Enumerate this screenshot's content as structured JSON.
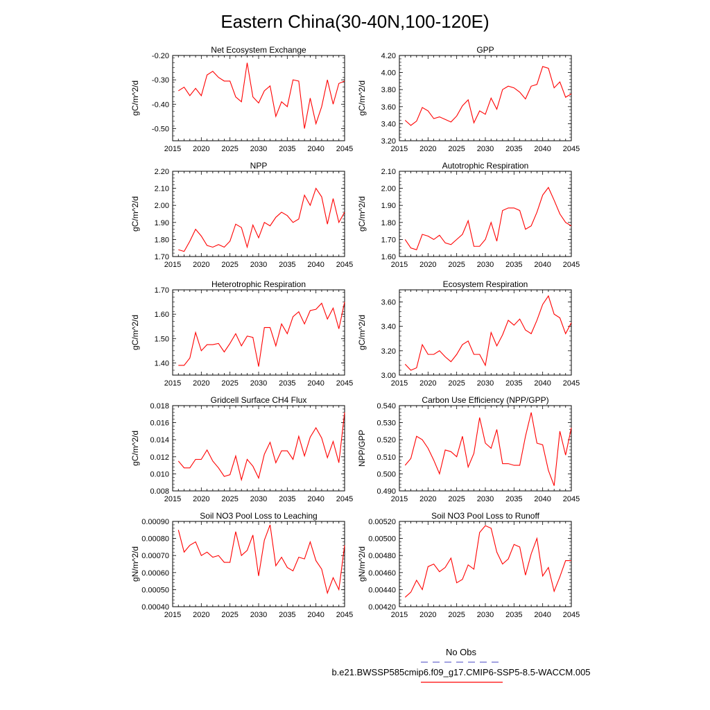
{
  "figure": {
    "title": "Eastern China(30-40N,100-120E)",
    "legend": {
      "obs_label": "No Obs",
      "obs_color": "#6a6acd",
      "model_label": "b.e21.BWSSP585cmip6.f09_g17.CMIP6-SSP5-8.5-WACCM.005",
      "model_color": "#ff0000"
    }
  },
  "chart_data": [
    {
      "type": "line",
      "title": "Net Ecosystem Exchange",
      "ylabel": "gC/m^2/d",
      "ylim": [
        -0.55,
        -0.2
      ],
      "yticks": [
        "-0.20",
        "-0.30",
        "-0.40",
        "-0.50"
      ],
      "xlim": [
        2015,
        2045
      ],
      "xticks": [
        "2015",
        "2020",
        "2025",
        "2030",
        "2035",
        "2040",
        "2045"
      ],
      "x": [
        2016,
        2017,
        2018,
        2019,
        2020,
        2021,
        2022,
        2023,
        2024,
        2025,
        2026,
        2027,
        2028,
        2029,
        2030,
        2031,
        2032,
        2033,
        2034,
        2035,
        2036,
        2037,
        2038,
        2039,
        2040,
        2041,
        2042,
        2043,
        2044,
        2045
      ],
      "series": [
        {
          "values": [
            -0.345,
            -0.33,
            -0.365,
            -0.335,
            -0.365,
            -0.28,
            -0.265,
            -0.29,
            -0.305,
            -0.305,
            -0.37,
            -0.39,
            -0.23,
            -0.37,
            -0.395,
            -0.345,
            -0.325,
            -0.45,
            -0.39,
            -0.41,
            -0.3,
            -0.305,
            -0.5,
            -0.375,
            -0.48,
            -0.41,
            -0.3,
            -0.4,
            -0.315,
            -0.305
          ]
        }
      ]
    },
    {
      "type": "line",
      "title": "GPP",
      "ylabel": "gC/m^2/d",
      "ylim": [
        3.2,
        4.2
      ],
      "yticks": [
        "4.20",
        "4.00",
        "3.80",
        "3.60",
        "3.40",
        "3.20"
      ],
      "xlim": [
        2015,
        2045
      ],
      "xticks": [
        "2015",
        "2020",
        "2025",
        "2030",
        "2035",
        "2040",
        "2045"
      ],
      "x": [
        2016,
        2017,
        2018,
        2019,
        2020,
        2021,
        2022,
        2023,
        2024,
        2025,
        2026,
        2027,
        2028,
        2029,
        2030,
        2031,
        2032,
        2033,
        2034,
        2035,
        2036,
        2037,
        2038,
        2039,
        2040,
        2041,
        2042,
        2043,
        2044,
        2045
      ],
      "series": [
        {
          "values": [
            3.44,
            3.38,
            3.43,
            3.59,
            3.55,
            3.46,
            3.48,
            3.45,
            3.42,
            3.49,
            3.61,
            3.68,
            3.41,
            3.55,
            3.51,
            3.7,
            3.57,
            3.8,
            3.84,
            3.82,
            3.77,
            3.69,
            3.84,
            3.86,
            4.07,
            4.05,
            3.82,
            3.89,
            3.71,
            3.75
          ]
        }
      ]
    },
    {
      "type": "line",
      "title": "NPP",
      "ylabel": "gC/m^2/d",
      "ylim": [
        1.7,
        2.2
      ],
      "yticks": [
        "2.20",
        "2.10",
        "2.00",
        "1.90",
        "1.80",
        "1.70"
      ],
      "xlim": [
        2015,
        2045
      ],
      "xticks": [
        "2015",
        "2020",
        "2025",
        "2030",
        "2035",
        "2040",
        "2045"
      ],
      "x": [
        2016,
        2017,
        2018,
        2019,
        2020,
        2021,
        2022,
        2023,
        2024,
        2025,
        2026,
        2027,
        2028,
        2029,
        2030,
        2031,
        2032,
        2033,
        2034,
        2035,
        2036,
        2037,
        2038,
        2039,
        2040,
        2041,
        2042,
        2043,
        2044,
        2045
      ],
      "series": [
        {
          "values": [
            1.74,
            1.73,
            1.79,
            1.86,
            1.82,
            1.765,
            1.755,
            1.77,
            1.755,
            1.79,
            1.89,
            1.87,
            1.755,
            1.885,
            1.81,
            1.9,
            1.88,
            1.93,
            1.96,
            1.94,
            1.9,
            1.92,
            2.06,
            2.0,
            2.1,
            2.05,
            1.89,
            2.04,
            1.9,
            1.96
          ]
        }
      ]
    },
    {
      "type": "line",
      "title": "Autotrophic Respiration",
      "ylabel": "gC/m^2/d",
      "ylim": [
        1.6,
        2.1
      ],
      "yticks": [
        "2.10",
        "2.00",
        "1.90",
        "1.80",
        "1.70",
        "1.60"
      ],
      "xlim": [
        2015,
        2045
      ],
      "xticks": [
        "2015",
        "2020",
        "2025",
        "2030",
        "2035",
        "2040",
        "2045"
      ],
      "x": [
        2016,
        2017,
        2018,
        2019,
        2020,
        2021,
        2022,
        2023,
        2024,
        2025,
        2026,
        2027,
        2028,
        2029,
        2030,
        2031,
        2032,
        2033,
        2034,
        2035,
        2036,
        2037,
        2038,
        2039,
        2040,
        2041,
        2042,
        2043,
        2044,
        2045
      ],
      "series": [
        {
          "values": [
            1.7,
            1.65,
            1.64,
            1.73,
            1.72,
            1.7,
            1.725,
            1.68,
            1.67,
            1.7,
            1.73,
            1.81,
            1.66,
            1.66,
            1.7,
            1.8,
            1.69,
            1.87,
            1.885,
            1.885,
            1.87,
            1.76,
            1.78,
            1.86,
            1.96,
            2.005,
            1.93,
            1.85,
            1.8,
            1.78
          ]
        }
      ]
    },
    {
      "type": "line",
      "title": "Heterotrophic Respiration",
      "ylabel": "gC/m^2/d",
      "ylim": [
        1.35,
        1.7
      ],
      "yticks": [
        "1.70",
        "1.60",
        "1.50",
        "1.40"
      ],
      "xlim": [
        2015,
        2045
      ],
      "xticks": [
        "2015",
        "2020",
        "2025",
        "2030",
        "2035",
        "2040",
        "2045"
      ],
      "x": [
        2016,
        2017,
        2018,
        2019,
        2020,
        2021,
        2022,
        2023,
        2024,
        2025,
        2026,
        2027,
        2028,
        2029,
        2030,
        2031,
        2032,
        2033,
        2034,
        2035,
        2036,
        2037,
        2038,
        2039,
        2040,
        2041,
        2042,
        2043,
        2044,
        2045
      ],
      "series": [
        {
          "values": [
            1.39,
            1.39,
            1.42,
            1.525,
            1.45,
            1.475,
            1.475,
            1.48,
            1.445,
            1.48,
            1.52,
            1.47,
            1.51,
            1.505,
            1.385,
            1.545,
            1.545,
            1.47,
            1.56,
            1.52,
            1.59,
            1.61,
            1.56,
            1.615,
            1.62,
            1.645,
            1.58,
            1.625,
            1.54,
            1.65
          ]
        }
      ]
    },
    {
      "type": "line",
      "title": "Ecosystem Respiration",
      "ylabel": "gC/m^2/d",
      "ylim": [
        3.0,
        3.7
      ],
      "yticks": [
        "3.60",
        "3.40",
        "3.20",
        "3.00"
      ],
      "xlim": [
        2015,
        2045
      ],
      "xticks": [
        "2015",
        "2020",
        "2025",
        "2030",
        "2035",
        "2040",
        "2045"
      ],
      "x": [
        2016,
        2017,
        2018,
        2019,
        2020,
        2021,
        2022,
        2023,
        2024,
        2025,
        2026,
        2027,
        2028,
        2029,
        2030,
        2031,
        2032,
        2033,
        2034,
        2035,
        2036,
        2037,
        2038,
        2039,
        2040,
        2041,
        2042,
        2043,
        2044,
        2045
      ],
      "series": [
        {
          "values": [
            3.09,
            3.04,
            3.06,
            3.25,
            3.17,
            3.17,
            3.2,
            3.15,
            3.11,
            3.17,
            3.25,
            3.28,
            3.17,
            3.17,
            3.08,
            3.35,
            3.24,
            3.33,
            3.45,
            3.41,
            3.46,
            3.37,
            3.34,
            3.45,
            3.58,
            3.65,
            3.5,
            3.47,
            3.34,
            3.43
          ]
        }
      ]
    },
    {
      "type": "line",
      "title": "Gridcell Surface CH4 Flux",
      "ylabel": "gC/m^2/d",
      "ylim": [
        0.008,
        0.018
      ],
      "yticks": [
        "0.018",
        "0.016",
        "0.014",
        "0.012",
        "0.010",
        "0.008"
      ],
      "xlim": [
        2015,
        2045
      ],
      "xticks": [
        "2015",
        "2020",
        "2025",
        "2030",
        "2035",
        "2040",
        "2045"
      ],
      "x": [
        2016,
        2017,
        2018,
        2019,
        2020,
        2021,
        2022,
        2023,
        2024,
        2025,
        2026,
        2027,
        2028,
        2029,
        2030,
        2031,
        2032,
        2033,
        2034,
        2035,
        2036,
        2037,
        2038,
        2039,
        2040,
        2041,
        2042,
        2043,
        2044,
        2045
      ],
      "series": [
        {
          "values": [
            0.0115,
            0.0107,
            0.0107,
            0.0117,
            0.0117,
            0.0128,
            0.0115,
            0.0107,
            0.0097,
            0.0099,
            0.0121,
            0.0093,
            0.0117,
            0.0109,
            0.0095,
            0.0123,
            0.0137,
            0.0113,
            0.0127,
            0.0127,
            0.0117,
            0.0144,
            0.0121,
            0.0143,
            0.0154,
            0.0142,
            0.0119,
            0.0138,
            0.0113,
            0.0172
          ]
        }
      ]
    },
    {
      "type": "line",
      "title": "Carbon Use Efficiency (NPP/GPP)",
      "ylabel": "NPP/GPP",
      "ylim": [
        0.49,
        0.54
      ],
      "yticks": [
        "0.540",
        "0.530",
        "0.520",
        "0.510",
        "0.500",
        "0.490"
      ],
      "xlim": [
        2015,
        2045
      ],
      "xticks": [
        "2015",
        "2020",
        "2025",
        "2030",
        "2035",
        "2040",
        "2045"
      ],
      "x": [
        2016,
        2017,
        2018,
        2019,
        2020,
        2021,
        2022,
        2023,
        2024,
        2025,
        2026,
        2027,
        2028,
        2029,
        2030,
        2031,
        2032,
        2033,
        2034,
        2035,
        2036,
        2037,
        2038,
        2039,
        2040,
        2041,
        2042,
        2043,
        2044,
        2045
      ],
      "series": [
        {
          "values": [
            0.505,
            0.509,
            0.522,
            0.52,
            0.515,
            0.508,
            0.5,
            0.514,
            0.513,
            0.51,
            0.522,
            0.504,
            0.512,
            0.533,
            0.518,
            0.515,
            0.526,
            0.506,
            0.506,
            0.505,
            0.505,
            0.522,
            0.536,
            0.518,
            0.517,
            0.502,
            0.493,
            0.525,
            0.511,
            0.527
          ]
        }
      ]
    },
    {
      "type": "line",
      "title": "Soil NO3 Pool Loss to Leaching",
      "ylabel": "gN/m^2/d",
      "ylim": [
        0.0004,
        0.0009
      ],
      "yticks": [
        "0.00090",
        "0.00080",
        "0.00070",
        "0.00060",
        "0.00050",
        "0.00040"
      ],
      "xlim": [
        2015,
        2045
      ],
      "xticks": [
        "2015",
        "2020",
        "2025",
        "2030",
        "2035",
        "2040",
        "2045"
      ],
      "x": [
        2016,
        2017,
        2018,
        2019,
        2020,
        2021,
        2022,
        2023,
        2024,
        2025,
        2026,
        2027,
        2028,
        2029,
        2030,
        2031,
        2032,
        2033,
        2034,
        2035,
        2036,
        2037,
        2038,
        2039,
        2040,
        2041,
        2042,
        2043,
        2044,
        2045
      ],
      "series": [
        {
          "values": [
            0.00085,
            0.00072,
            0.00076,
            0.00078,
            0.0007,
            0.00072,
            0.00069,
            0.0007,
            0.00066,
            0.00066,
            0.00084,
            0.0007,
            0.00073,
            0.00082,
            0.00058,
            0.00079,
            0.00088,
            0.00064,
            0.00069,
            0.00063,
            0.00061,
            0.00069,
            0.00068,
            0.00078,
            0.00067,
            0.00062,
            0.00048,
            0.00057,
            0.0005,
            0.00076
          ]
        }
      ]
    },
    {
      "type": "line",
      "title": "Soil NO3 Pool Loss to Runoff",
      "ylabel": "gN/m^2/d",
      "ylim": [
        0.0042,
        0.0052
      ],
      "yticks": [
        "0.00520",
        "0.00500",
        "0.00480",
        "0.00460",
        "0.00440",
        "0.00420"
      ],
      "xlim": [
        2015,
        2045
      ],
      "xticks": [
        "2015",
        "2020",
        "2025",
        "2030",
        "2035",
        "2040",
        "2045"
      ],
      "x": [
        2016,
        2017,
        2018,
        2019,
        2020,
        2021,
        2022,
        2023,
        2024,
        2025,
        2026,
        2027,
        2028,
        2029,
        2030,
        2031,
        2032,
        2033,
        2034,
        2035,
        2036,
        2037,
        2038,
        2039,
        2040,
        2041,
        2042,
        2043,
        2044,
        2045
      ],
      "series": [
        {
          "values": [
            0.00431,
            0.00437,
            0.00451,
            0.0044,
            0.00467,
            0.0047,
            0.00461,
            0.00466,
            0.00477,
            0.00448,
            0.00452,
            0.00469,
            0.00464,
            0.00507,
            0.00515,
            0.00512,
            0.00484,
            0.0047,
            0.00476,
            0.00493,
            0.0049,
            0.00457,
            0.00482,
            0.005,
            0.00456,
            0.00466,
            0.00438,
            0.00455,
            0.00474,
            0.00474
          ]
        }
      ]
    }
  ]
}
